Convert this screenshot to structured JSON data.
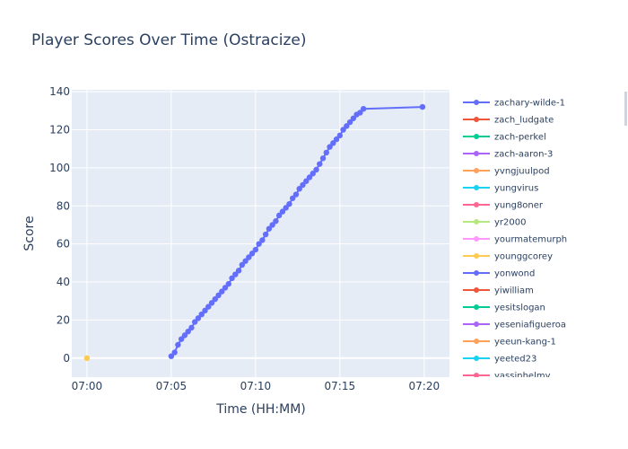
{
  "chart_data": {
    "type": "line",
    "title": "Player Scores Over Time (Ostracize)",
    "xlabel": "Time (HH:MM)",
    "ylabel": "Score",
    "x_axis_format": "HH:MM",
    "xlim": [
      "06:59:06",
      "07:21:30"
    ],
    "ylim": [
      -10,
      141
    ],
    "x_tick_labels": [
      "07:00",
      "07:05",
      "07:10",
      "07:15",
      "07:20"
    ],
    "y_tick_labels": [
      "0",
      "20",
      "40",
      "60",
      "80",
      "100",
      "120",
      "140"
    ],
    "grid": true,
    "legend_position": "right",
    "legend_entries": [
      {
        "name": "zachary-wilde-1",
        "color": "#636efa"
      },
      {
        "name": "zach_ludgate",
        "color": "#EF553B"
      },
      {
        "name": "zach-perkel",
        "color": "#00cc96"
      },
      {
        "name": "zach-aaron-3",
        "color": "#ab63fa"
      },
      {
        "name": "yvngjuulpod",
        "color": "#FFA15A"
      },
      {
        "name": "yungvirus",
        "color": "#19d3f3"
      },
      {
        "name": "yung8oner",
        "color": "#FF6692"
      },
      {
        "name": "yr2000",
        "color": "#B6E880"
      },
      {
        "name": "yourmatemurph",
        "color": "#FF97FF"
      },
      {
        "name": "younggcorey",
        "color": "#FECB52"
      },
      {
        "name": "yonwond",
        "color": "#636efa"
      },
      {
        "name": "yiwilliam",
        "color": "#EF553B"
      },
      {
        "name": "yesitslogan",
        "color": "#00cc96"
      },
      {
        "name": "yeseniafigueroa",
        "color": "#ab63fa"
      },
      {
        "name": "yeeun-kang-1",
        "color": "#FFA15A"
      },
      {
        "name": "yeeted23",
        "color": "#19d3f3"
      },
      {
        "name": "yassinhelmy",
        "color": "#FF6692"
      }
    ],
    "series": [
      {
        "name": "zachary-wilde-1",
        "color": "#636efa",
        "points": [
          [
            "07:05:00",
            1
          ],
          [
            "07:05:12",
            3
          ],
          [
            "07:05:24",
            7
          ],
          [
            "07:05:36",
            10
          ],
          [
            "07:05:48",
            12
          ],
          [
            "07:06:00",
            14
          ],
          [
            "07:06:12",
            16
          ],
          [
            "07:06:24",
            19
          ],
          [
            "07:06:36",
            21
          ],
          [
            "07:06:48",
            23
          ],
          [
            "07:07:00",
            25
          ],
          [
            "07:07:12",
            27
          ],
          [
            "07:07:24",
            29
          ],
          [
            "07:07:36",
            31
          ],
          [
            "07:07:48",
            33
          ],
          [
            "07:08:00",
            35
          ],
          [
            "07:08:12",
            37
          ],
          [
            "07:08:24",
            39
          ],
          [
            "07:08:36",
            42
          ],
          [
            "07:08:48",
            44
          ],
          [
            "07:09:00",
            46
          ],
          [
            "07:09:12",
            49
          ],
          [
            "07:09:24",
            51
          ],
          [
            "07:09:36",
            53
          ],
          [
            "07:09:48",
            55
          ],
          [
            "07:10:00",
            57
          ],
          [
            "07:10:12",
            60
          ],
          [
            "07:10:24",
            62
          ],
          [
            "07:10:36",
            65
          ],
          [
            "07:10:48",
            68
          ],
          [
            "07:11:00",
            70
          ],
          [
            "07:11:12",
            72
          ],
          [
            "07:11:24",
            75
          ],
          [
            "07:11:36",
            77
          ],
          [
            "07:11:48",
            79
          ],
          [
            "07:12:00",
            81
          ],
          [
            "07:12:12",
            84
          ],
          [
            "07:12:24",
            86
          ],
          [
            "07:12:36",
            89
          ],
          [
            "07:12:48",
            91
          ],
          [
            "07:13:00",
            93
          ],
          [
            "07:13:12",
            95
          ],
          [
            "07:13:24",
            97
          ],
          [
            "07:13:36",
            99
          ],
          [
            "07:13:48",
            102
          ],
          [
            "07:14:00",
            105
          ],
          [
            "07:14:12",
            108
          ],
          [
            "07:14:24",
            111
          ],
          [
            "07:14:36",
            113
          ],
          [
            "07:14:48",
            115
          ],
          [
            "07:15:00",
            117
          ],
          [
            "07:15:12",
            120
          ],
          [
            "07:15:24",
            122
          ],
          [
            "07:15:36",
            124
          ],
          [
            "07:15:48",
            126
          ],
          [
            "07:16:00",
            128
          ],
          [
            "07:16:12",
            129
          ],
          [
            "07:16:24",
            131
          ],
          [
            "07:19:54",
            132
          ]
        ]
      },
      {
        "name": "younggcorey",
        "color": "#FECB52",
        "points": [
          [
            "07:00:00",
            0
          ]
        ]
      }
    ]
  }
}
